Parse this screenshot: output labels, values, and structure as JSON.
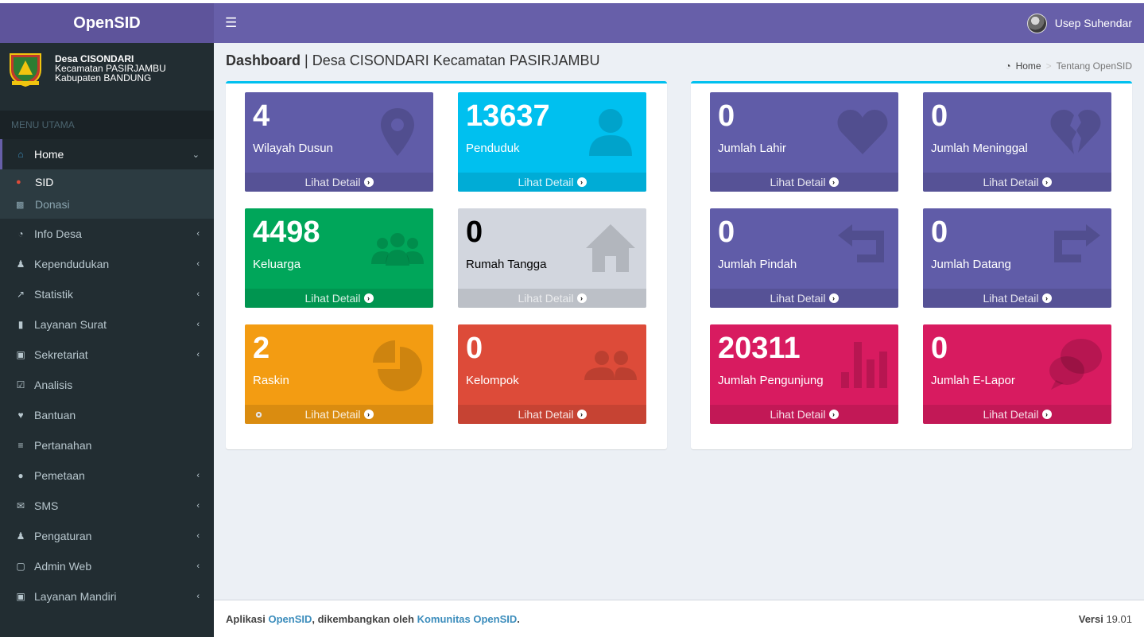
{
  "app": {
    "title": "OpenSID"
  },
  "topbar": {
    "user_name": "Usep Suhendar"
  },
  "village": {
    "name": "Desa CISONDARI",
    "district": "Kecamatan PASIRJAMBU",
    "regency": "Kabupaten BANDUNG"
  },
  "sidebar": {
    "header": "MENU UTAMA",
    "home": {
      "label": "Home",
      "icon": "home-icon"
    },
    "sub": [
      {
        "label": "SID",
        "icon": "globe-icon"
      },
      {
        "label": "Donasi",
        "icon": "money-icon"
      }
    ],
    "items": [
      {
        "label": "Info Desa",
        "icon": "dashboard-icon",
        "chevron": true
      },
      {
        "label": "Kependudukan",
        "icon": "users-icon",
        "chevron": true
      },
      {
        "label": "Statistik",
        "icon": "line-chart-icon",
        "chevron": true
      },
      {
        "label": "Layanan Surat",
        "icon": "book-icon",
        "chevron": true
      },
      {
        "label": "Sekretariat",
        "icon": "archive-icon",
        "chevron": true
      },
      {
        "label": "Analisis",
        "icon": "check-square-icon",
        "chevron": false
      },
      {
        "label": "Bantuan",
        "icon": "heart-icon",
        "chevron": false
      },
      {
        "label": "Pertanahan",
        "icon": "map-signs-icon",
        "chevron": false
      },
      {
        "label": "Pemetaan",
        "icon": "globe-icon",
        "chevron": true
      },
      {
        "label": "SMS",
        "icon": "envelope-icon",
        "chevron": true
      },
      {
        "label": "Pengaturan",
        "icon": "users-icon",
        "chevron": true
      },
      {
        "label": "Admin Web",
        "icon": "desktop-icon",
        "chevron": true
      },
      {
        "label": "Layanan Mandiri",
        "icon": "inbox-icon",
        "chevron": true
      }
    ]
  },
  "content": {
    "title": "Dashboard",
    "subtitle": "| Desa CISONDARI Kecamatan PASIRJAMBU",
    "breadcrumb": {
      "home": "Home",
      "current": "Tentang OpenSID"
    }
  },
  "tiles_left": [
    {
      "value": "4",
      "label": "Wilayah Dusun",
      "footer": "Lihat Detail",
      "color": "#605ca8",
      "icon": "map-marker-icon"
    },
    {
      "value": "13637",
      "label": "Penduduk",
      "footer": "Lihat Detail",
      "color": "#00c0ef",
      "icon": "user-icon"
    },
    {
      "value": "4498",
      "label": "Keluarga",
      "footer": "Lihat Detail",
      "color": "#00a65a",
      "icon": "users-icon"
    },
    {
      "value": "0",
      "label": "Rumah Tangga",
      "footer": "Lihat Detail",
      "color": "#d2d6de",
      "icon": "home-icon"
    },
    {
      "value": "2",
      "label": "Raskin",
      "footer": "Lihat Detail",
      "color": "#f39c12",
      "icon": "pie-chart-icon"
    },
    {
      "value": "0",
      "label": "Kelompok",
      "footer": "Lihat Detail",
      "color": "#dd4b39",
      "icon": "group-icon"
    }
  ],
  "tiles_right": [
    {
      "value": "0",
      "label": "Jumlah Lahir",
      "footer": "Lihat Detail",
      "color": "#605ca8",
      "icon": "heart-icon"
    },
    {
      "value": "0",
      "label": "Jumlah Meninggal",
      "footer": "Lihat Detail",
      "color": "#605ca8",
      "icon": "broken-heart-icon"
    },
    {
      "value": "0",
      "label": "Jumlah Pindah",
      "footer": "Lihat Detail",
      "color": "#605ca8",
      "icon": "reply-icon"
    },
    {
      "value": "0",
      "label": "Jumlah Datang",
      "footer": "Lihat Detail",
      "color": "#605ca8",
      "icon": "share-icon"
    },
    {
      "value": "20311",
      "label": "Jumlah Pengunjung",
      "footer": "Lihat Detail",
      "color": "#d81b60",
      "icon": "bar-chart-icon"
    },
    {
      "value": "0",
      "label": "Jumlah E-Lapor",
      "footer": "Lihat Detail",
      "color": "#d81b60",
      "icon": "comments-icon"
    }
  ],
  "footer": {
    "prefix": "Aplikasi ",
    "app_link": "OpenSID",
    "middle": ", dikembangkan oleh ",
    "community_link": "Komunitas OpenSID",
    "suffix": ".",
    "version_label": "Versi",
    "version": "19.01"
  }
}
